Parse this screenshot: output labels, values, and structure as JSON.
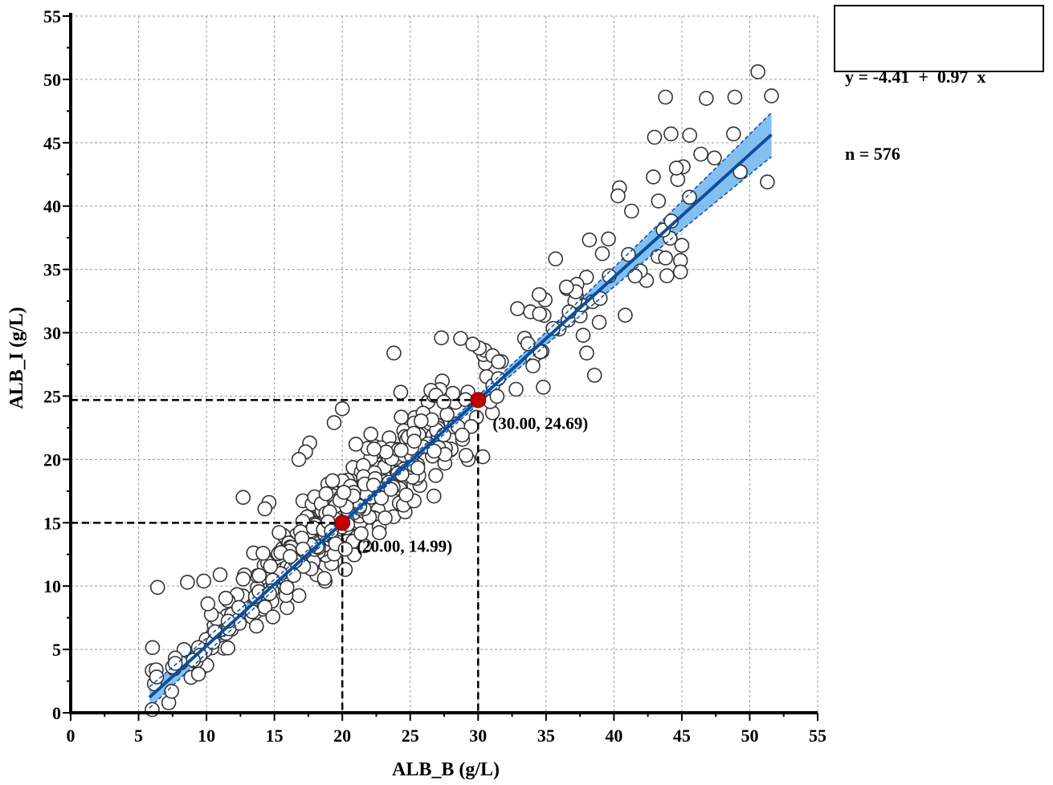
{
  "chart_data": {
    "type": "scatter",
    "xlabel": "ALB_B (g/L)",
    "ylabel": "ALB_I (g/L)",
    "xlim": [
      0,
      55
    ],
    "ylim": [
      0,
      55
    ],
    "xticks": [
      0,
      5,
      10,
      15,
      20,
      25,
      30,
      35,
      40,
      45,
      50,
      55
    ],
    "yticks": [
      0,
      5,
      10,
      15,
      20,
      25,
      30,
      35,
      40,
      45,
      50,
      55
    ],
    "grid": true,
    "regression": {
      "intercept": -4.41,
      "slope": 0.97,
      "x_range": [
        5.8,
        51.6
      ],
      "line_color": "#0b4f9c",
      "ci_color": "#6fb4f0"
    },
    "equation_box": {
      "equation": "y = -4.41  +  0.97  x",
      "n": "n = 576"
    },
    "highlight_points": [
      {
        "x": 20.0,
        "y": 14.99,
        "label": "(20.00, 14.99)",
        "color": "#c00000"
      },
      {
        "x": 30.0,
        "y": 24.69,
        "label": "(30.00, 24.69)",
        "color": "#c00000"
      }
    ],
    "outlier_points": [
      [
        6.4,
        9.9
      ],
      [
        8.6,
        10.3
      ],
      [
        9.8,
        10.4
      ],
      [
        10.1,
        8.6
      ],
      [
        12.7,
        17.0
      ],
      [
        23.8,
        28.4
      ],
      [
        27.3,
        29.6
      ],
      [
        29.6,
        29.1
      ],
      [
        20.0,
        24.0
      ],
      [
        19.4,
        22.9
      ],
      [
        17.6,
        21.3
      ],
      [
        17.3,
        20.6
      ],
      [
        16.8,
        20.0
      ],
      [
        24.3,
        25.3
      ],
      [
        22.1,
        22.0
      ],
      [
        21.0,
        21.2
      ],
      [
        32.9,
        31.9
      ],
      [
        36.5,
        33.6
      ],
      [
        40.3,
        40.8
      ],
      [
        41.3,
        39.6
      ],
      [
        42.9,
        42.3
      ],
      [
        43.8,
        48.6
      ],
      [
        44.2,
        45.7
      ],
      [
        46.8,
        48.5
      ],
      [
        48.9,
        48.6
      ],
      [
        50.6,
        50.6
      ],
      [
        51.6,
        48.7
      ],
      [
        48.8,
        45.7
      ],
      [
        47.4,
        43.8
      ],
      [
        46.4,
        44.1
      ],
      [
        49.3,
        42.7
      ],
      [
        51.3,
        41.9
      ],
      [
        44.7,
        42.1
      ],
      [
        44.6,
        43.0
      ],
      [
        45.0,
        36.9
      ],
      [
        44.9,
        35.7
      ],
      [
        44.9,
        34.8
      ],
      [
        43.9,
        34.5
      ],
      [
        43.8,
        35.9
      ],
      [
        38.0,
        28.4
      ],
      [
        34.8,
        25.7
      ],
      [
        24.7,
        17.2
      ],
      [
        31.5,
        27.7
      ],
      [
        14.6,
        16.6
      ],
      [
        14.3,
        16.1
      ],
      [
        11.0,
        10.9
      ]
    ]
  }
}
